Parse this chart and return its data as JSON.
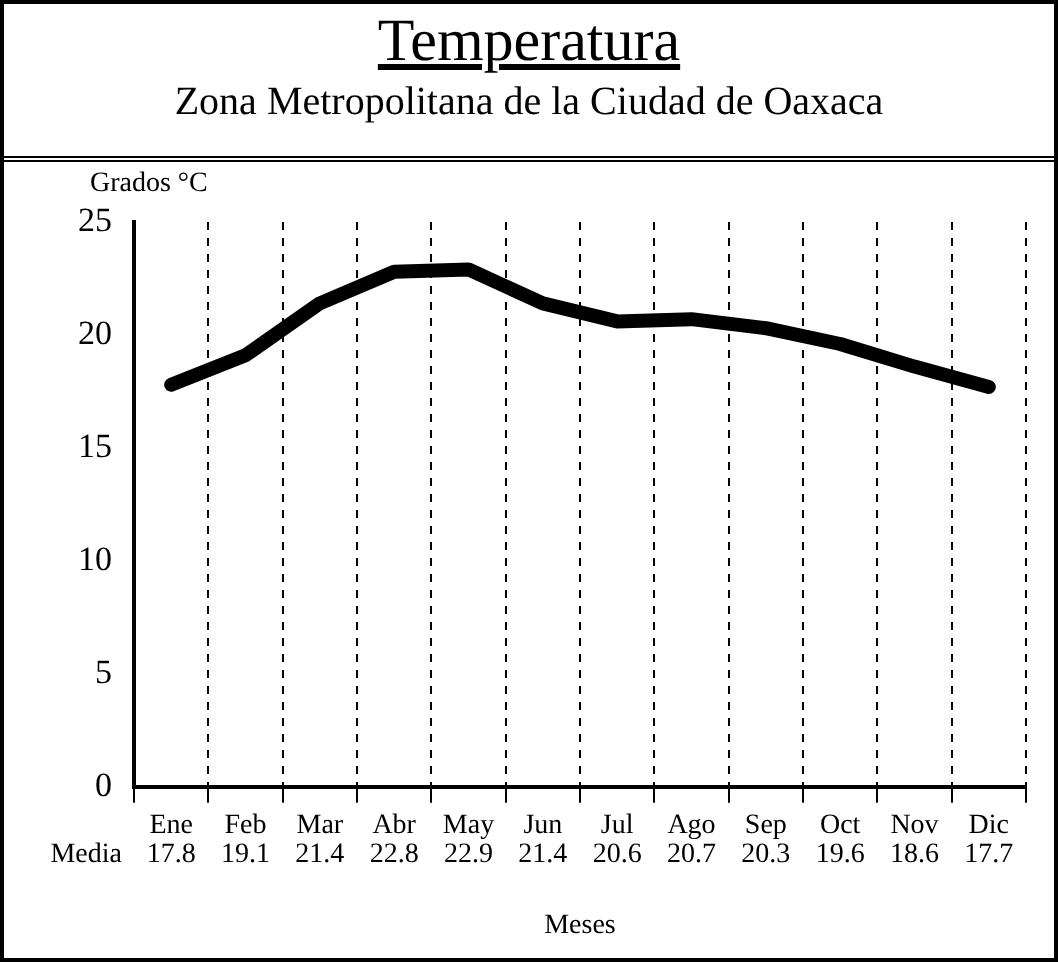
{
  "chart_data": {
    "type": "line",
    "title": "Temperatura",
    "subtitle": "Zona Metropolitana de la Ciudad de Oaxaca",
    "ylabel": "Grados °C",
    "xlabel": "Meses",
    "categories": [
      "Ene",
      "Feb",
      "Mar",
      "Abr",
      "May",
      "Jun",
      "Jul",
      "Ago",
      "Sep",
      "Oct",
      "Nov",
      "Dic"
    ],
    "series": [
      {
        "name": "Media",
        "color": "#000000",
        "values": [
          17.8,
          19.1,
          21.4,
          22.8,
          22.9,
          21.4,
          20.6,
          20.7,
          20.3,
          19.6,
          18.6,
          17.7
        ]
      }
    ],
    "ylim": [
      0,
      25
    ],
    "yticks": [
      0,
      5,
      10,
      15,
      20,
      25
    ],
    "grid": "x",
    "legend": false,
    "marker": "none",
    "line_style": "solid",
    "data_labels": true
  }
}
